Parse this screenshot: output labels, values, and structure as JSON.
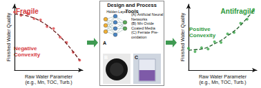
{
  "chart_data": [
    {
      "type": "scatter",
      "title": "Fragile",
      "annotation": "Negative\nConvexity",
      "color": "#d63a3e",
      "xlabel": "Raw Water Parameter\n(e.g., Mn, TOC, Turb.)",
      "ylabel": "Finished Water Quality",
      "x": [
        0,
        0.1,
        0.2,
        0.3,
        0.4,
        0.5,
        0.6,
        0.7,
        0.8,
        0.9,
        1
      ],
      "xlim": [
        0,
        1.05
      ],
      "ylim": [
        0,
        1
      ],
      "tick_labels": false,
      "grid": false,
      "series": [
        {
          "type": "scatter",
          "marker": "circle",
          "color": "#e0474b",
          "values": [
            0.88,
            0.83,
            0.86,
            0.78,
            0.76,
            0.66,
            0.63,
            0.5,
            0.42,
            0.27,
            0.15
          ]
        },
        {
          "type": "line",
          "line_style": "dashed",
          "color": "#6b1d1d",
          "values": [
            0.85,
            0.84,
            0.82,
            0.79,
            0.74,
            0.68,
            0.6,
            0.51,
            0.4,
            0.28,
            0.15
          ]
        }
      ]
    },
    {
      "type": "scatter",
      "title": "Antifragile",
      "annotation": "Positive\nConvexity",
      "color": "#2e9a3c",
      "xlabel": "Raw Water Parameter\n(e.g., Mn, TOC, Turb.)",
      "ylabel": "Finished Water Quality",
      "x": [
        0,
        0.1,
        0.2,
        0.3,
        0.4,
        0.5,
        0.6,
        0.7,
        0.8,
        0.9,
        1
      ],
      "xlim": [
        0,
        1.05
      ],
      "ylim": [
        0,
        1
      ],
      "tick_labels": false,
      "grid": false,
      "series": [
        {
          "type": "scatter",
          "marker": "circle",
          "color": "#3aa648",
          "values": [
            0.33,
            0.28,
            0.34,
            0.32,
            0.43,
            0.42,
            0.55,
            0.57,
            0.71,
            0.77,
            0.92
          ]
        },
        {
          "type": "line",
          "line_style": "dashed",
          "color": "#1e5e27",
          "values": [
            0.3,
            0.31,
            0.32,
            0.35,
            0.4,
            0.45,
            0.52,
            0.59,
            0.68,
            0.79,
            0.9
          ]
        }
      ]
    }
  ],
  "tools": {
    "title": "Design and Process Tools",
    "hidden_layer_label": "Hidden Layer",
    "items": [
      "(A) Artificial Neural Networks",
      "(B) Mn Oxide Coated Media",
      "(C) Ferrate Pre-oxidation"
    ],
    "image_labels": [
      "A",
      "B",
      "C"
    ]
  }
}
